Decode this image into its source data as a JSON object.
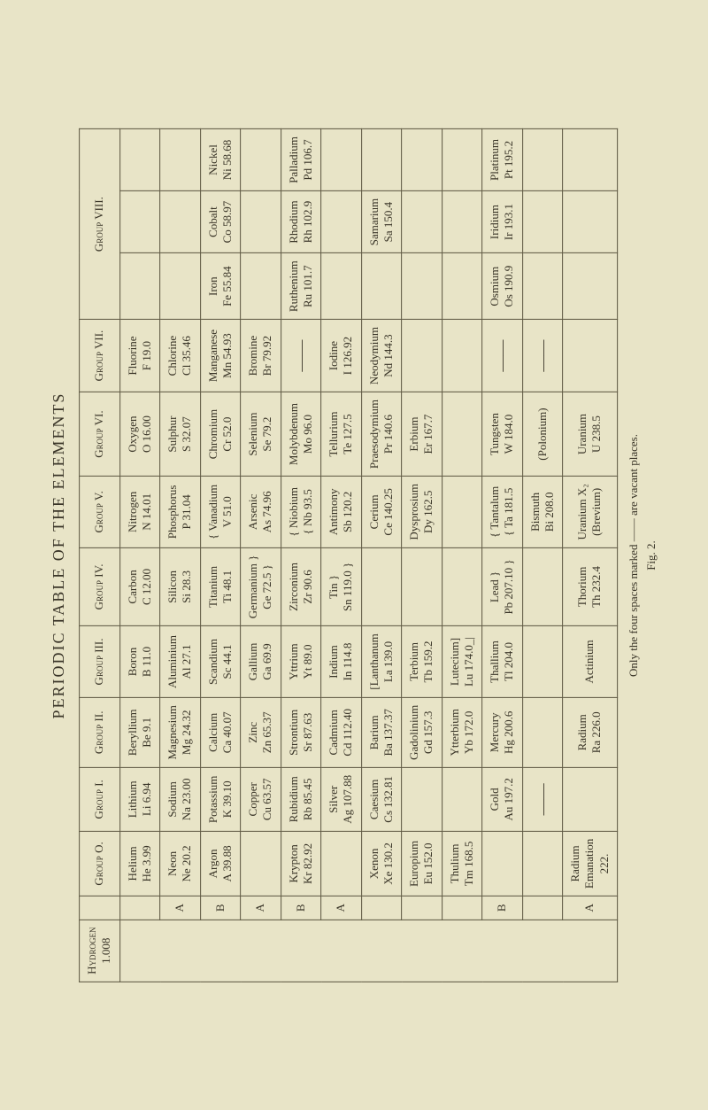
{
  "title": "PERIODIC TABLE OF THE ELEMENTS",
  "footnote": "Only the four spaces marked —— are vacant places.",
  "figlabel": "Fig. 2.",
  "headers": {
    "g0": "Group O.",
    "g1": "Group I.",
    "g2": "Group II.",
    "g3": "Group III.",
    "g4": "Group IV.",
    "g5": "Group V.",
    "g6": "Group VI.",
    "g7": "Group VII.",
    "g8": "Group VIII."
  },
  "labels": {
    "hydrogen_n": "Hydrogen",
    "hydrogen_m": "1.008",
    "A": "A",
    "B": "B"
  },
  "rows": [
    {
      "ab": "",
      "g0n": "Helium",
      "g0m": "He 3.99",
      "g1n": "Lithium",
      "g1m": "Li 6.94",
      "g2n": "Beryllium",
      "g2m": "Be 9.1",
      "g3n": "Boron",
      "g3m": "B 11.0",
      "g4n": "Carbon",
      "g4m": "C 12.00",
      "g5n": "Nitrogen",
      "g5m": "N 14.01",
      "g6n": "Oxygen",
      "g6m": "O 16.00",
      "g7n": "Fluorine",
      "g7m": "F 19.0",
      "g8a": "",
      "g8b": "",
      "g8c": ""
    },
    {
      "ab": "A",
      "g0n": "Neon",
      "g0m": "Ne 20.2",
      "g1n": "Sodium",
      "g1m": "Na 23.00",
      "g2n": "Magnesium",
      "g2m": "Mg 24.32",
      "g3n": "Aluminium",
      "g3m": "Al 27.1",
      "g4n": "Silicon",
      "g4m": "Si 28.3",
      "g5n": "Phosphorus",
      "g5m": "P 31.04",
      "g6n": "Sulphur",
      "g6m": "S 32.07",
      "g7n": "Chlorine",
      "g7m": "Cl 35.46",
      "g8a": "",
      "g8b": "",
      "g8c": ""
    },
    {
      "ab": "B",
      "g0n": "Argon",
      "g0m": "A 39.88",
      "g1n": "Potassium",
      "g1m": "K 39.10",
      "g2n": "Calcium",
      "g2m": "Ca 40.07",
      "g3n": "Scandium",
      "g3m": "Sc 44.1",
      "g4n": "Titanium",
      "g4m": "Ti 48.1",
      "g5n": "{ Vanadium",
      "g5m": "V 51.0",
      "g6n": "Chromium",
      "g6m": "Cr 52.0",
      "g7n": "Manganese",
      "g7m": "Mn 54.93",
      "g8an": "Iron",
      "g8am": "Fe 55.84",
      "g8bn": "Cobalt",
      "g8bm": "Co 58.97",
      "g8cn": "Nickel",
      "g8cm": "Ni 58.68"
    },
    {
      "ab": "A",
      "g0n": "",
      "g0m": "",
      "g1n": "Copper",
      "g1m": "Cu 63.57",
      "g2n": "Zinc",
      "g2m": "Zn 65.37",
      "g3n": "Gallium",
      "g3m": "Ga 69.9",
      "g4n": "Germanium }",
      "g4m": "Ge 72.5   }",
      "g5n": "Arsenic",
      "g5m": "As 74.96",
      "g6n": "Selenium",
      "g6m": "Se 79.2",
      "g7n": "Bromine",
      "g7m": "Br 79.92",
      "g8a": "",
      "g8b": "",
      "g8c": ""
    },
    {
      "ab": "B",
      "g0n": "Krypton",
      "g0m": "Kr 82.92",
      "g1n": "Rubidium",
      "g1m": "Rb 85.45",
      "g2n": "Strontium",
      "g2m": "Sr 87.63",
      "g3n": "Yttrium",
      "g3m": "Yt 89.0",
      "g4n": "Zirconium",
      "g4m": "Zr 90.6",
      "g5n": "{ Niobium",
      "g5m": "{ Nb 93.5",
      "g6n": "Molybdenum",
      "g6m": "Mo 96.0",
      "g7n": "—",
      "g7m": "",
      "g8an": "Ruthenium",
      "g8am": "Ru 101.7",
      "g8bn": "Rhodium",
      "g8bm": "Rh 102.9",
      "g8cn": "Palladium",
      "g8cm": "Pd 106.7"
    },
    {
      "ab": "A",
      "g0n": "",
      "g0m": "",
      "g1n": "Silver",
      "g1m": "Ag 107.88",
      "g2n": "Cadmium",
      "g2m": "Cd 112.40",
      "g3n": "Indium",
      "g3m": "In 114.8",
      "g4n": "Tin  }",
      "g4m": "Sn 119.0 }",
      "g5n": "Antimony",
      "g5m": "Sb 120.2",
      "g6n": "Tellurium",
      "g6m": "Te 127.5",
      "g7n": "Iodine",
      "g7m": "I 126.92",
      "g8a": "",
      "g8b": "",
      "g8c": ""
    },
    {
      "ab": "",
      "g0n": "Xenon",
      "g0m": "Xe 130.2",
      "g1n": "Caesium",
      "g1m": "Cs 132.81",
      "g2n": "Barium",
      "g2m": "Ba 137.37",
      "g3n": "[Lanthanum",
      "g3m": "La 139.0",
      "g4n": "",
      "g4m": "",
      "g5n": "Cerium",
      "g5m": "Ce 140.25",
      "g6n": "Praesodymium",
      "g6m": "Pr 140.6",
      "g7n": "Neodymium",
      "g7m": "Nd 144.3",
      "g8an": "",
      "g8am": "",
      "g8bn": "Samarium",
      "g8bm": "Sa 150.4",
      "g8cn": "",
      "g8cm": ""
    },
    {
      "ab": "",
      "g0n": "Europium",
      "g0m": "Eu 152.0",
      "g1n": "",
      "g1m": "",
      "g2n": "Gadolinium",
      "g2m": "Gd 157.3",
      "g3n": "Terbium",
      "g3m": "Tb 159.2",
      "g4n": "",
      "g4m": "",
      "g5n": "Dysprosium",
      "g5m": "Dy 162.5",
      "g6n": "Erbium",
      "g6m": "Er 167.7",
      "g7n": "",
      "g7m": "",
      "g8a": "",
      "g8b": "",
      "g8c": ""
    },
    {
      "ab": "",
      "g0n": "Thulium",
      "g0m": "Tm 168.5",
      "g1n": "",
      "g1m": "",
      "g2n": "Ytterbium",
      "g2m": "Yb 172.0",
      "g3n": "Lutecium]",
      "g3m": "Lu 174.0_|",
      "g4n": "",
      "g4m": "",
      "g5n": "",
      "g5m": "",
      "g6n": "",
      "g6m": "",
      "g7n": "",
      "g7m": "",
      "g8a": "",
      "g8b": "",
      "g8c": ""
    },
    {
      "ab": "B",
      "g0n": "",
      "g0m": "",
      "g1n": "Gold",
      "g1m": "Au 197.2",
      "g2n": "Mercury",
      "g2m": "Hg 200.6",
      "g3n": "Thallium",
      "g3m": "Tl 204.0",
      "g4n": "Lead  }",
      "g4m": "Pb 207.10 }",
      "g5n": "{ Tantalum",
      "g5m": "{ Ta 181.5",
      "g6n": "Tungsten",
      "g6m": "W 184.0",
      "g7n": "—",
      "g7m": "",
      "g8an": "Osmium",
      "g8am": "Os 190.9",
      "g8bn": "Iridium",
      "g8bm": "Ir 193.1",
      "g8cn": "Platinum",
      "g8cm": "Pt 195.2"
    },
    {
      "ab": "",
      "g0n": "",
      "g0m": "",
      "g1n": "—",
      "g1m": "",
      "g2n": "",
      "g2m": "",
      "g3n": "",
      "g3m": "",
      "g4n": "",
      "g4m": "",
      "g5n": "Bismuth",
      "g5m": "Bi 208.0",
      "g6n": "(Polonium)",
      "g6m": "",
      "g7n": "—",
      "g7m": "",
      "g8a": "",
      "g8b": "",
      "g8c": ""
    },
    {
      "ab": "A",
      "g0n": "Radium",
      "g0m": "Emanation",
      "g0x": "222.",
      "g1n": "",
      "g1m": "",
      "g2n": "Radium",
      "g2m": "Ra 226.0",
      "g3n": "Actinium",
      "g3m": "",
      "g4n": "Thorium",
      "g4m": "Th 232.4",
      "g5n": "Uranium X₂",
      "g5m": "(Brevium)",
      "g6n": "Uranium",
      "g6m": "U 238.5",
      "g7n": "",
      "g7m": "",
      "g8a": "",
      "g8b": "",
      "g8c": ""
    }
  ]
}
